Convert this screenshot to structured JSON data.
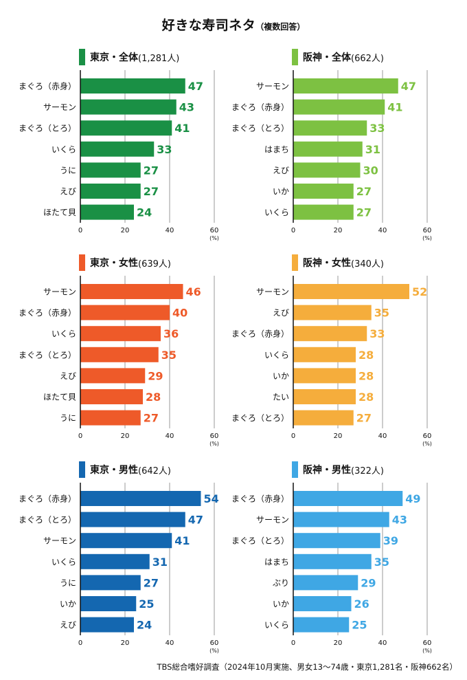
{
  "title": "好きな寿司ネタ",
  "subtitle": "（複数回答）",
  "source": "TBS総合嗜好調査（2024年10月実施、男女13〜74歳・東京1,281名・阪神662名）",
  "x_ticks": [
    "0",
    "20",
    "40",
    "60"
  ],
  "x_unit": "(%)",
  "chart_data": [
    {
      "type": "bar",
      "title": "東京・全体",
      "count": "(1,281人)",
      "color": "#1a9045",
      "categories": [
        "まぐろ（赤身）",
        "サーモン",
        "まぐろ（とろ）",
        "いくら",
        "うに",
        "えび",
        "ほたて貝"
      ],
      "values": [
        47,
        43,
        41,
        33,
        27,
        27,
        24
      ],
      "xlim": [
        0,
        60
      ],
      "xlabel": "(%)"
    },
    {
      "type": "bar",
      "title": "阪神・全体",
      "count": "(662人)",
      "color": "#7dc142",
      "categories": [
        "サーモン",
        "まぐろ（赤身）",
        "まぐろ（とろ）",
        "はまち",
        "えび",
        "いか",
        "いくら"
      ],
      "values": [
        47,
        41,
        33,
        31,
        30,
        27,
        27
      ],
      "xlim": [
        0,
        60
      ],
      "xlabel": "(%)"
    },
    {
      "type": "bar",
      "title": "東京・女性",
      "count": "(639人)",
      "color": "#ee5a29",
      "categories": [
        "サーモン",
        "まぐろ（赤身）",
        "いくら",
        "まぐろ（とろ）",
        "えび",
        "ほたて貝",
        "うに"
      ],
      "values": [
        46,
        40,
        36,
        35,
        29,
        28,
        27
      ],
      "xlim": [
        0,
        60
      ],
      "xlabel": "(%)"
    },
    {
      "type": "bar",
      "title": "阪神・女性",
      "count": "(340人)",
      "color": "#f5ad3c",
      "categories": [
        "サーモン",
        "えび",
        "まぐろ（赤身）",
        "いくら",
        "いか",
        "たい",
        "まぐろ（とろ）"
      ],
      "values": [
        52,
        35,
        33,
        28,
        28,
        28,
        27
      ],
      "xlim": [
        0,
        60
      ],
      "xlabel": "(%)"
    },
    {
      "type": "bar",
      "title": "東京・男性",
      "count": "(642人)",
      "color": "#1467b0",
      "categories": [
        "まぐろ（赤身）",
        "まぐろ（とろ）",
        "サーモン",
        "いくら",
        "うに",
        "いか",
        "えび"
      ],
      "values": [
        54,
        47,
        41,
        31,
        27,
        25,
        24
      ],
      "xlim": [
        0,
        60
      ],
      "xlabel": "(%)"
    },
    {
      "type": "bar",
      "title": "阪神・男性",
      "count": "(322人)",
      "color": "#3fa7e4",
      "categories": [
        "まぐろ（赤身）",
        "サーモン",
        "まぐろ（とろ）",
        "はまち",
        "ぶり",
        "いか",
        "いくら"
      ],
      "values": [
        49,
        43,
        39,
        35,
        29,
        26,
        25
      ],
      "xlim": [
        0,
        60
      ],
      "xlabel": "(%)"
    }
  ]
}
